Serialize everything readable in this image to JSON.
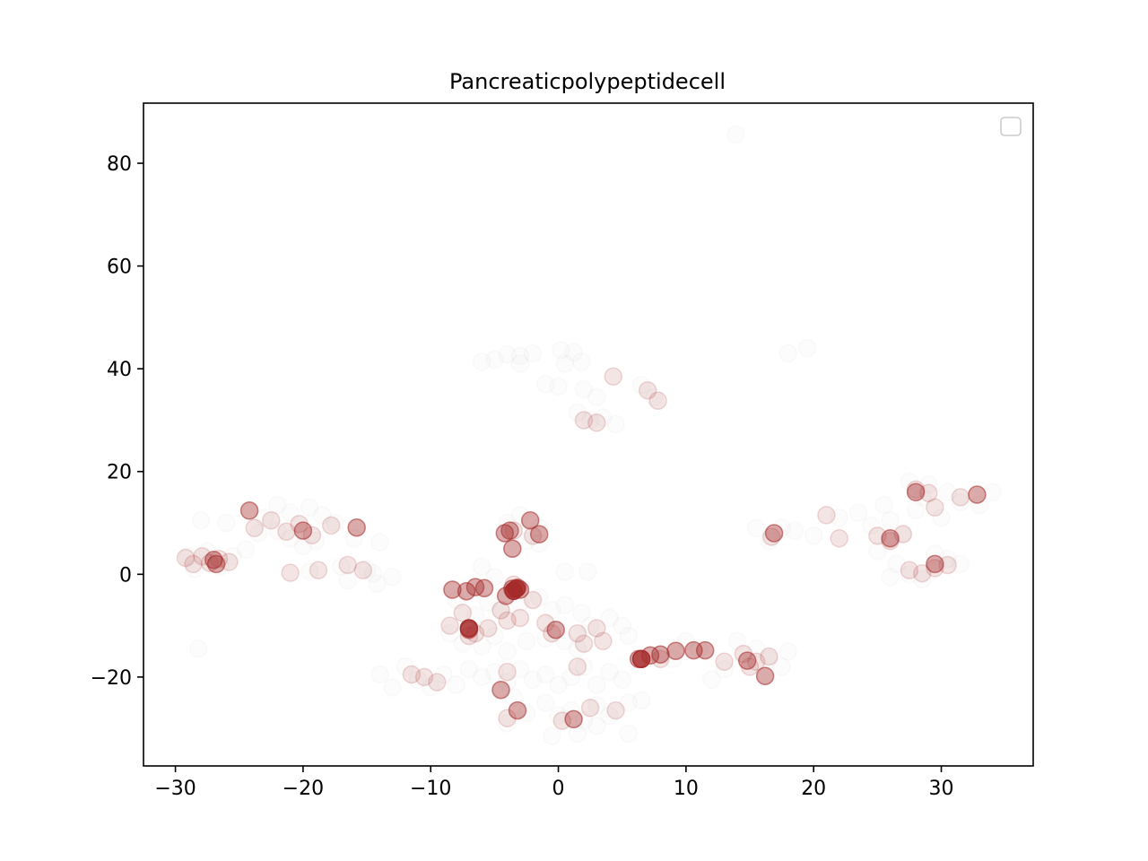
{
  "chart_data": {
    "type": "scatter",
    "title": "Pancreaticpolypeptidecell",
    "xlabel": "",
    "ylabel": "",
    "xlim": [
      -32.5,
      37.2
    ],
    "ylim": [
      -37.3,
      91.7
    ],
    "x_ticks": [
      -30,
      -20,
      -10,
      0,
      10,
      20,
      30
    ],
    "y_ticks": [
      -20,
      0,
      20,
      40,
      60,
      80
    ],
    "x_tick_labels": [
      "−30",
      "−20",
      "−10",
      "0",
      "10",
      "20",
      "30"
    ],
    "y_tick_labels": [
      "−20",
      "0",
      "20",
      "40",
      "60",
      "80"
    ],
    "grid": false,
    "legend": {
      "placement": "top-right",
      "entries": []
    },
    "colors": {
      "highlight": "#a52a2a",
      "background_points": "#c8c8c8",
      "axes": "#000000"
    },
    "series": [
      {
        "role": "background",
        "alpha": 0.06,
        "points": [
          [
            13.9,
            85.6
          ],
          [
            -4.0,
            42.8
          ],
          [
            -3.0,
            42.5
          ],
          [
            -2.0,
            43.0
          ],
          [
            0.2,
            43.6
          ],
          [
            1.2,
            43.2
          ],
          [
            -6.0,
            41.4
          ],
          [
            -5.0,
            41.8
          ],
          [
            -3.0,
            41.0
          ],
          [
            0.5,
            41.0
          ],
          [
            1.8,
            41.4
          ],
          [
            -1.0,
            37.0
          ],
          [
            0.0,
            36.6
          ],
          [
            2.0,
            36.0
          ],
          [
            3.0,
            34.5
          ],
          [
            6.5,
            36.8
          ],
          [
            7.5,
            34.5
          ],
          [
            1.5,
            31.5
          ],
          [
            2.5,
            30.0
          ],
          [
            3.5,
            30.5
          ],
          [
            4.5,
            29.2
          ],
          [
            18.0,
            43.0
          ],
          [
            19.5,
            44.0
          ],
          [
            -28.0,
            10.5
          ],
          [
            -26.0,
            10.0
          ],
          [
            -23.0,
            11.0
          ],
          [
            -22.0,
            13.5
          ],
          [
            -21.0,
            12.0
          ],
          [
            -19.5,
            13.0
          ],
          [
            -18.5,
            11.5
          ],
          [
            -17.5,
            10.0
          ],
          [
            -23.5,
            8.0
          ],
          [
            -22.0,
            8.5
          ],
          [
            -21.0,
            7.0
          ],
          [
            -20.0,
            5.5
          ],
          [
            -19.0,
            6.5
          ],
          [
            -16.0,
            7.0
          ],
          [
            -14.0,
            6.2
          ],
          [
            -29.0,
            3.5
          ],
          [
            -28.5,
            1.0
          ],
          [
            -27.5,
            4.5
          ],
          [
            -26.5,
            1.5
          ],
          [
            -25.5,
            3.5
          ],
          [
            -24.5,
            4.8
          ],
          [
            -19.5,
            0.5
          ],
          [
            -17.0,
            1.5
          ],
          [
            -15.0,
            1.0
          ],
          [
            -14.5,
            0.2
          ],
          [
            -13.0,
            -0.5
          ],
          [
            -28.2,
            -14.5
          ],
          [
            -16.5,
            -1.2
          ],
          [
            -14.2,
            -1.8
          ],
          [
            -4.0,
            10.0
          ],
          [
            -3.0,
            11.5
          ],
          [
            -1.5,
            9.0
          ],
          [
            -2.5,
            6.5
          ],
          [
            -1.5,
            6.0
          ],
          [
            -6.0,
            1.5
          ],
          [
            -5.0,
            -0.5
          ],
          [
            0.5,
            0.5
          ],
          [
            2.3,
            0.5
          ],
          [
            -8.0,
            -5.0
          ],
          [
            -6.5,
            -8.0
          ],
          [
            -5.5,
            -5.5
          ],
          [
            -4.5,
            -7.0
          ],
          [
            -3.0,
            -5.5
          ],
          [
            -1.5,
            -4.5
          ],
          [
            -0.5,
            -7.0
          ],
          [
            0.5,
            -6.0
          ],
          [
            1.8,
            -7.5
          ],
          [
            2.5,
            -10.0
          ],
          [
            4.0,
            -8.5
          ],
          [
            5.0,
            -10.0
          ],
          [
            5.5,
            -12.0
          ],
          [
            -8.5,
            -11.5
          ],
          [
            -7.5,
            -13.5
          ],
          [
            -6.0,
            -14.0
          ],
          [
            -5.0,
            -12.0
          ],
          [
            -4.0,
            -15.0
          ],
          [
            -2.5,
            -13.0
          ],
          [
            -1.0,
            -12.5
          ],
          [
            0.5,
            -13.0
          ],
          [
            1.5,
            -14.5
          ],
          [
            -12.0,
            -18.0
          ],
          [
            -11.0,
            -20.5
          ],
          [
            -10.0,
            -22.0
          ],
          [
            -9.0,
            -19.5
          ],
          [
            -8.0,
            -21.5
          ],
          [
            -7.0,
            -18.5
          ],
          [
            -6.0,
            -20.0
          ],
          [
            -5.0,
            -19.0
          ],
          [
            -4.0,
            -21.0
          ],
          [
            -3.0,
            -18.5
          ],
          [
            -2.0,
            -20.5
          ],
          [
            -1.0,
            -19.5
          ],
          [
            0.0,
            -21.5
          ],
          [
            1.0,
            -20.0
          ],
          [
            2.0,
            -18.0
          ],
          [
            3.0,
            -21.5
          ],
          [
            4.0,
            -19.0
          ],
          [
            5.0,
            -20.5
          ],
          [
            -14.0,
            -19.5
          ],
          [
            -13.0,
            -22.0
          ],
          [
            -3.5,
            -24.0
          ],
          [
            -2.5,
            -27.0
          ],
          [
            -1.0,
            -25.0
          ],
          [
            0.0,
            -27.5
          ],
          [
            1.0,
            -26.5
          ],
          [
            2.0,
            -28.5
          ],
          [
            3.0,
            -25.5
          ],
          [
            4.0,
            -27.5
          ],
          [
            5.5,
            -25.0
          ],
          [
            6.5,
            -24.5
          ],
          [
            -0.5,
            -31.5
          ],
          [
            1.5,
            -31.0
          ],
          [
            3.0,
            -29.5
          ],
          [
            5.5,
            -31.0
          ],
          [
            -4.0,
            -29.0
          ],
          [
            12.0,
            -20.5
          ],
          [
            13.0,
            -18.5
          ],
          [
            14.0,
            -13.0
          ],
          [
            15.5,
            -14.5
          ],
          [
            16.5,
            -16.5
          ],
          [
            17.5,
            -18.0
          ],
          [
            18.0,
            -15.0
          ],
          [
            10.0,
            -13.0
          ],
          [
            11.0,
            -14.5
          ],
          [
            9.0,
            -16.5
          ],
          [
            8.0,
            -15.5
          ],
          [
            15.5,
            9.0
          ],
          [
            16.5,
            6.5
          ],
          [
            17.5,
            9.0
          ],
          [
            18.5,
            8.5
          ],
          [
            20.0,
            7.5
          ],
          [
            22.0,
            11.0
          ],
          [
            23.5,
            12.0
          ],
          [
            24.5,
            9.5
          ],
          [
            25.5,
            13.5
          ],
          [
            26.0,
            10.5
          ],
          [
            27.0,
            8.0
          ],
          [
            28.0,
            12.5
          ],
          [
            28.5,
            15.0
          ],
          [
            27.5,
            18.0
          ],
          [
            29.0,
            17.5
          ],
          [
            30.5,
            16.0
          ],
          [
            31.5,
            14.0
          ],
          [
            33.0,
            13.5
          ],
          [
            34.0,
            16.0
          ],
          [
            30.0,
            11.0
          ],
          [
            25.0,
            4.5
          ],
          [
            26.5,
            2.0
          ],
          [
            27.5,
            0.0
          ],
          [
            28.5,
            -1.0
          ],
          [
            30.5,
            3.0
          ],
          [
            31.5,
            2.0
          ],
          [
            29.5,
            4.0
          ],
          [
            26.0,
            -0.5
          ]
        ]
      },
      {
        "role": "highlight",
        "alpha": 0.12,
        "points": [
          [
            -29.2,
            3.2
          ],
          [
            -28.6,
            2.0
          ],
          [
            -27.9,
            3.5
          ],
          [
            -27.3,
            2.2
          ],
          [
            -26.6,
            3.0
          ],
          [
            -25.8,
            2.4
          ],
          [
            -23.8,
            9.0
          ],
          [
            -22.5,
            10.5
          ],
          [
            -21.3,
            8.3
          ],
          [
            -20.3,
            9.8
          ],
          [
            -19.3,
            7.6
          ],
          [
            -17.8,
            9.5
          ],
          [
            -21.0,
            0.3
          ],
          [
            -18.8,
            0.8
          ],
          [
            -16.5,
            1.8
          ],
          [
            -15.3,
            0.8
          ],
          [
            -8.5,
            -10.0
          ],
          [
            -7.5,
            -7.5
          ],
          [
            -5.5,
            -10.5
          ],
          [
            -4.0,
            -9.0
          ],
          [
            -3.0,
            -8.5
          ],
          [
            -1.0,
            -9.5
          ],
          [
            1.5,
            -11.5
          ],
          [
            3.0,
            -10.5
          ],
          [
            -10.5,
            -20.0
          ],
          [
            -9.5,
            -21.0
          ],
          [
            -11.5,
            -19.5
          ],
          [
            -4.0,
            -28.0
          ],
          [
            0.3,
            -28.5
          ],
          [
            -2.0,
            7.5
          ],
          [
            -3.5,
            8.5
          ],
          [
            2.0,
            -13.5
          ],
          [
            3.5,
            -13.0
          ],
          [
            4.3,
            38.5
          ],
          [
            7.0,
            35.8
          ],
          [
            7.8,
            33.8
          ],
          [
            2.0,
            30.0
          ],
          [
            3.0,
            29.5
          ],
          [
            13.0,
            -17.0
          ],
          [
            14.5,
            -15.5
          ],
          [
            15.5,
            -17.0
          ],
          [
            16.5,
            -16.0
          ],
          [
            15.0,
            -18.0
          ],
          [
            16.7,
            7.3
          ],
          [
            21.0,
            11.5
          ],
          [
            22.0,
            7.0
          ],
          [
            25.0,
            7.5
          ],
          [
            26.0,
            6.5
          ],
          [
            27.0,
            7.8
          ],
          [
            28.0,
            16.5
          ],
          [
            29.0,
            15.8
          ],
          [
            31.5,
            15.0
          ],
          [
            29.5,
            13.0
          ],
          [
            27.5,
            0.8
          ],
          [
            28.5,
            0.2
          ],
          [
            29.5,
            1.2
          ],
          [
            30.5,
            1.8
          ],
          [
            -4.5,
            -7.0
          ],
          [
            -4.0,
            -19.0
          ],
          [
            2.5,
            -26.0
          ],
          [
            -6.5,
            -11.5
          ],
          [
            4.5,
            -26.5
          ],
          [
            -2.0,
            -5.0
          ],
          [
            -3.5,
            -2.0
          ],
          [
            -7.0,
            -12.0
          ],
          [
            1.5,
            -18.0
          ],
          [
            -0.5,
            -11.5
          ],
          [
            8.0,
            -16.5
          ]
        ]
      },
      {
        "role": "highlight",
        "alpha": 0.4,
        "points": [
          [
            -24.2,
            12.4
          ],
          [
            -15.8,
            9.1
          ],
          [
            -20.0,
            8.5
          ],
          [
            -27.0,
            2.8
          ],
          [
            -26.8,
            2.0
          ],
          [
            -2.2,
            10.5
          ],
          [
            -3.8,
            8.5
          ],
          [
            -3.6,
            5.0
          ],
          [
            -4.2,
            8.0
          ],
          [
            -1.5,
            7.8
          ],
          [
            -8.3,
            -3.0
          ],
          [
            -7.2,
            -3.3
          ],
          [
            -6.5,
            -2.5
          ],
          [
            -5.8,
            -2.7
          ],
          [
            -4.1,
            -4.2
          ],
          [
            -3.6,
            -2.8
          ],
          [
            -3.2,
            -2.6
          ],
          [
            -3.0,
            -3.0
          ],
          [
            -7.0,
            -10.8
          ],
          [
            -0.2,
            -10.8
          ],
          [
            6.3,
            -16.5
          ],
          [
            7.2,
            -15.8
          ],
          [
            8.0,
            -15.6
          ],
          [
            9.2,
            -14.9
          ],
          [
            10.6,
            -14.8
          ],
          [
            11.5,
            -14.8
          ],
          [
            14.8,
            -16.8
          ],
          [
            16.2,
            -19.8
          ],
          [
            -4.5,
            -22.5
          ],
          [
            -3.2,
            -26.5
          ],
          [
            1.2,
            -28.2
          ],
          [
            16.9,
            8.0
          ],
          [
            26.0,
            7.0
          ],
          [
            29.5,
            2.0
          ],
          [
            32.8,
            15.5
          ],
          [
            28.0,
            16.0
          ]
        ]
      },
      {
        "role": "highlight",
        "alpha": 0.75,
        "points": [
          [
            -3.3,
            -2.8
          ],
          [
            6.5,
            -16.5
          ],
          [
            -3.5,
            -3.2
          ],
          [
            -7.0,
            -10.5
          ]
        ]
      }
    ]
  }
}
